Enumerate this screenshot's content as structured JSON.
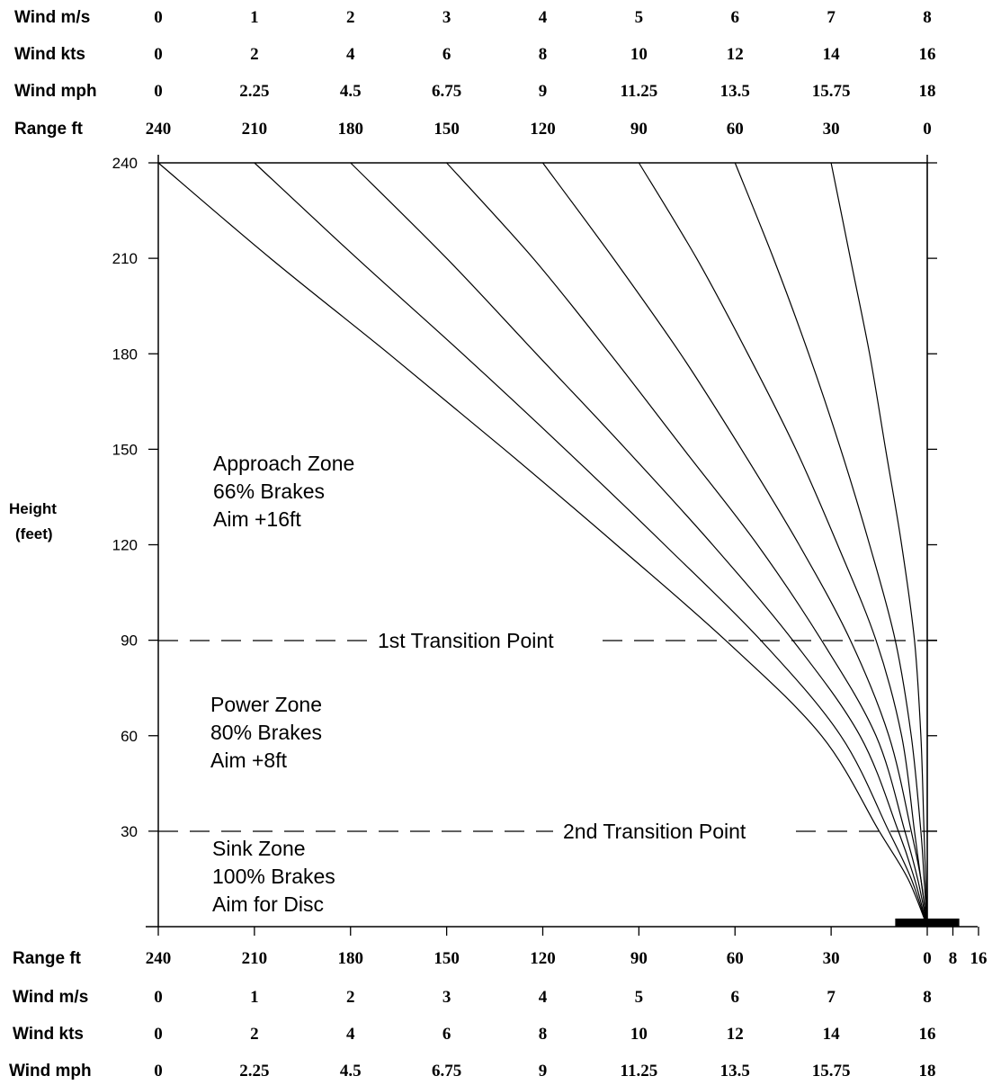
{
  "chart_data": {
    "type": "line",
    "ylabel_line1": "Height",
    "ylabel_line2": "(feet)",
    "ylim": [
      0,
      240
    ],
    "xlim_range_ft": [
      240,
      0
    ],
    "grid": false,
    "y_ticks": [
      "240",
      "210",
      "180",
      "150",
      "120",
      "90",
      "60",
      "30"
    ],
    "y_tick_values": [
      240,
      210,
      180,
      150,
      120,
      90,
      60,
      30
    ],
    "top_rows": [
      {
        "label": "Wind  m/s",
        "values": [
          "0",
          "1",
          "2",
          "3",
          "4",
          "5",
          "6",
          "7",
          "8"
        ]
      },
      {
        "label": "Wind  kts",
        "values": [
          "0",
          "2",
          "4",
          "6",
          "8",
          "10",
          "12",
          "14",
          "16"
        ]
      },
      {
        "label": "Wind mph",
        "values": [
          "0",
          "2.25",
          "4.5",
          "6.75",
          "9",
          "11.25",
          "13.5",
          "15.75",
          "18"
        ]
      },
      {
        "label": "Range ft",
        "values": [
          "240",
          "210",
          "180",
          "150",
          "120",
          "90",
          "60",
          "30",
          "0"
        ]
      }
    ],
    "bottom_rows": [
      {
        "label": "Range ft",
        "values": [
          "240",
          "210",
          "180",
          "150",
          "120",
          "90",
          "60",
          "30",
          "0"
        ],
        "extra": [
          "8",
          "16"
        ]
      },
      {
        "label": "Wind  m/s",
        "values": [
          "0",
          "1",
          "2",
          "3",
          "4",
          "5",
          "6",
          "7",
          "8"
        ]
      },
      {
        "label": "Wind  kts",
        "values": [
          "0",
          "2",
          "4",
          "6",
          "8",
          "10",
          "12",
          "14",
          "16"
        ]
      },
      {
        "label": "Wind mph",
        "values": [
          "0",
          "2.25",
          "4.5",
          "6.75",
          "9",
          "11.25",
          "13.5",
          "15.75",
          "18"
        ]
      }
    ],
    "range_values": [
      240,
      210,
      180,
      150,
      120,
      90,
      60,
      30,
      0
    ],
    "extra_range_values": [
      -8,
      -16
    ],
    "series": [
      {
        "wind_ms": 0,
        "points": [
          [
            240,
            240
          ],
          [
            205,
            210
          ],
          [
            168,
            180
          ],
          [
            132,
            150
          ],
          [
            97,
            120
          ],
          [
            63,
            90
          ],
          [
            33,
            60
          ],
          [
            15,
            30
          ],
          [
            6,
            15
          ],
          [
            0,
            0
          ]
        ]
      },
      {
        "wind_ms": 1,
        "points": [
          [
            210,
            240
          ],
          [
            178,
            210
          ],
          [
            145,
            180
          ],
          [
            113,
            150
          ],
          [
            82,
            120
          ],
          [
            52,
            90
          ],
          [
            27,
            60
          ],
          [
            12,
            30
          ],
          [
            5,
            15
          ],
          [
            0,
            0
          ]
        ]
      },
      {
        "wind_ms": 2,
        "points": [
          [
            180,
            240
          ],
          [
            150,
            210
          ],
          [
            122,
            180
          ],
          [
            94,
            150
          ],
          [
            67,
            120
          ],
          [
            42,
            90
          ],
          [
            21,
            60
          ],
          [
            9,
            30
          ],
          [
            4,
            15
          ],
          [
            0,
            0
          ]
        ]
      },
      {
        "wind_ms": 3,
        "points": [
          [
            150,
            240
          ],
          [
            123,
            210
          ],
          [
            99,
            180
          ],
          [
            76,
            150
          ],
          [
            53,
            120
          ],
          [
            33,
            90
          ],
          [
            16,
            60
          ],
          [
            7,
            30
          ],
          [
            3,
            15
          ],
          [
            0,
            0
          ]
        ]
      },
      {
        "wind_ms": 4,
        "points": [
          [
            120,
            240
          ],
          [
            98,
            210
          ],
          [
            77,
            180
          ],
          [
            58,
            150
          ],
          [
            40,
            120
          ],
          [
            24,
            90
          ],
          [
            12,
            60
          ],
          [
            5,
            30
          ],
          [
            2,
            15
          ],
          [
            0,
            0
          ]
        ]
      },
      {
        "wind_ms": 5,
        "points": [
          [
            90,
            240
          ],
          [
            72,
            210
          ],
          [
            56,
            180
          ],
          [
            41,
            150
          ],
          [
            28,
            120
          ],
          [
            16,
            90
          ],
          [
            8,
            60
          ],
          [
            4,
            30
          ],
          [
            2,
            15
          ],
          [
            0,
            0
          ]
        ]
      },
      {
        "wind_ms": 6,
        "points": [
          [
            60,
            240
          ],
          [
            48,
            210
          ],
          [
            37,
            180
          ],
          [
            27,
            150
          ],
          [
            18,
            120
          ],
          [
            10,
            90
          ],
          [
            5,
            60
          ],
          [
            2,
            30
          ],
          [
            1,
            15
          ],
          [
            0,
            0
          ]
        ]
      },
      {
        "wind_ms": 7,
        "points": [
          [
            30,
            240
          ],
          [
            24,
            210
          ],
          [
            18,
            180
          ],
          [
            13,
            150
          ],
          [
            8,
            120
          ],
          [
            4,
            90
          ],
          [
            2,
            60
          ],
          [
            1,
            30
          ],
          [
            0.5,
            15
          ],
          [
            0,
            0
          ]
        ]
      },
      {
        "wind_ms": 8,
        "points": [
          [
            0,
            240
          ],
          [
            0,
            0
          ]
        ]
      }
    ],
    "transition_lines": [
      {
        "label": "1st Transition Point",
        "height": 90
      },
      {
        "label": "2nd Transition Point",
        "height": 30
      }
    ],
    "zones": [
      {
        "lines": [
          "Approach Zone",
          "66% Brakes",
          "Aim +16ft"
        ]
      },
      {
        "lines": [
          "Power Zone",
          "80% Brakes",
          "Aim +8ft"
        ]
      },
      {
        "lines": [
          "Sink Zone",
          "100% Brakes",
          "Aim for Disc"
        ]
      }
    ],
    "target_disc": {
      "range_from": 10,
      "range_to": -10,
      "color": "#000000"
    }
  }
}
